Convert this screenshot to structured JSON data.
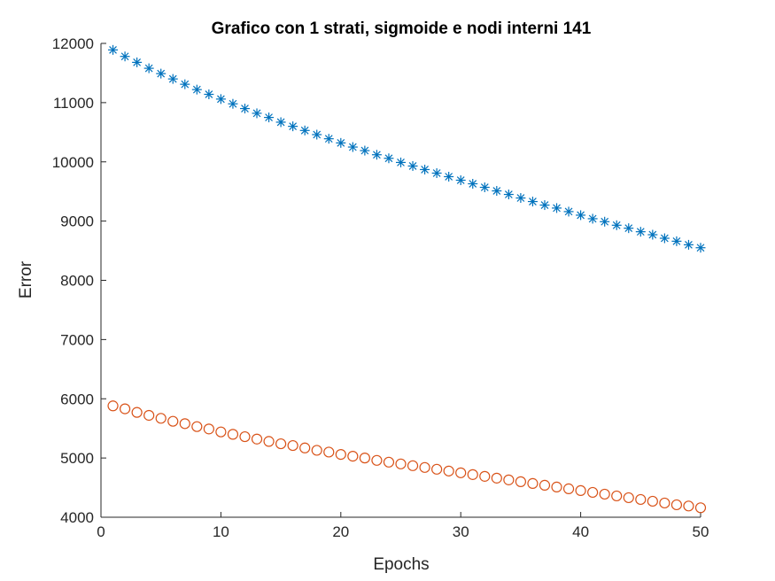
{
  "chart_data": {
    "type": "scatter",
    "title": "Grafico con 1 strati, sigmoide e nodi interni 141",
    "xlabel": "Epochs",
    "ylabel": "Error",
    "xlim": [
      0,
      50
    ],
    "ylim": [
      4000,
      12000
    ],
    "x_ticks": [
      "0",
      "10",
      "20",
      "30",
      "40",
      "50"
    ],
    "y_ticks": [
      "4000",
      "5000",
      "6000",
      "7000",
      "8000",
      "9000",
      "10000",
      "11000",
      "12000"
    ],
    "grid": false,
    "series": [
      {
        "marker": "asterisk",
        "color": "#0072BD",
        "x": [
          1,
          2,
          3,
          4,
          5,
          6,
          7,
          8,
          9,
          10,
          11,
          12,
          13,
          14,
          15,
          16,
          17,
          18,
          19,
          20,
          21,
          22,
          23,
          24,
          25,
          26,
          27,
          28,
          29,
          30,
          31,
          32,
          33,
          34,
          35,
          36,
          37,
          38,
          39,
          40,
          41,
          42,
          43,
          44,
          45,
          46,
          47,
          48,
          49,
          50
        ],
        "values": [
          11890,
          11780,
          11680,
          11580,
          11490,
          11400,
          11310,
          11220,
          11140,
          11060,
          10980,
          10900,
          10820,
          10750,
          10670,
          10600,
          10530,
          10460,
          10390,
          10320,
          10250,
          10190,
          10120,
          10060,
          9990,
          9930,
          9870,
          9810,
          9750,
          9690,
          9630,
          9570,
          9510,
          9450,
          9390,
          9330,
          9270,
          9220,
          9160,
          9100,
          9040,
          8990,
          8930,
          8880,
          8820,
          8770,
          8710,
          8660,
          8600,
          8550
        ]
      },
      {
        "marker": "circle",
        "color": "#D95319",
        "x": [
          1,
          2,
          3,
          4,
          5,
          6,
          7,
          8,
          9,
          10,
          11,
          12,
          13,
          14,
          15,
          16,
          17,
          18,
          19,
          20,
          21,
          22,
          23,
          24,
          25,
          26,
          27,
          28,
          29,
          30,
          31,
          32,
          33,
          34,
          35,
          36,
          37,
          38,
          39,
          40,
          41,
          42,
          43,
          44,
          45,
          46,
          47,
          48,
          49,
          50
        ],
        "values": [
          5880,
          5830,
          5770,
          5720,
          5670,
          5620,
          5580,
          5530,
          5490,
          5440,
          5400,
          5360,
          5320,
          5280,
          5240,
          5210,
          5170,
          5130,
          5100,
          5060,
          5030,
          5000,
          4960,
          4930,
          4900,
          4870,
          4840,
          4810,
          4780,
          4750,
          4720,
          4690,
          4660,
          4630,
          4600,
          4570,
          4540,
          4510,
          4480,
          4450,
          4420,
          4390,
          4360,
          4330,
          4300,
          4270,
          4240,
          4210,
          4190,
          4160
        ]
      }
    ]
  }
}
